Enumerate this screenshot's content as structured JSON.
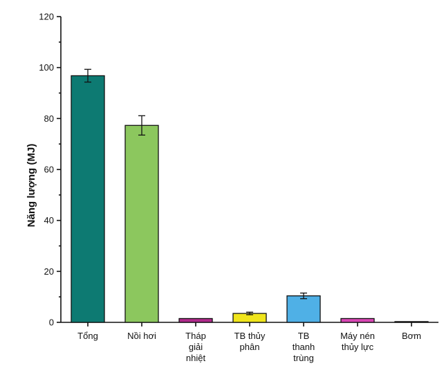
{
  "chart_data": {
    "type": "bar",
    "title": "",
    "xlabel": "",
    "ylabel": "Năng lượng (MJ)",
    "ylim": [
      0,
      120
    ],
    "yticks": [
      0,
      20,
      40,
      60,
      80,
      100,
      120
    ],
    "grid": false,
    "categories": [
      [
        "Tổng"
      ],
      [
        "Nồi hơi"
      ],
      [
        "Tháp",
        "giải",
        "nhiệt"
      ],
      [
        "TB thủy",
        "phân"
      ],
      [
        "TB",
        "thanh",
        "trùng"
      ],
      [
        "Máy nén",
        "thủy lực"
      ],
      [
        "Bơm"
      ]
    ],
    "values": [
      96.8,
      77.3,
      1.5,
      3.5,
      10.4,
      1.5,
      0.3
    ],
    "errors": [
      2.5,
      3.8,
      0,
      0.5,
      1.1,
      0,
      0
    ],
    "colors": [
      "#0d7a72",
      "#8cc75e",
      "#b02a8c",
      "#f0e51c",
      "#4fb0e6",
      "#d946b4",
      "#6e6e6e"
    ]
  }
}
